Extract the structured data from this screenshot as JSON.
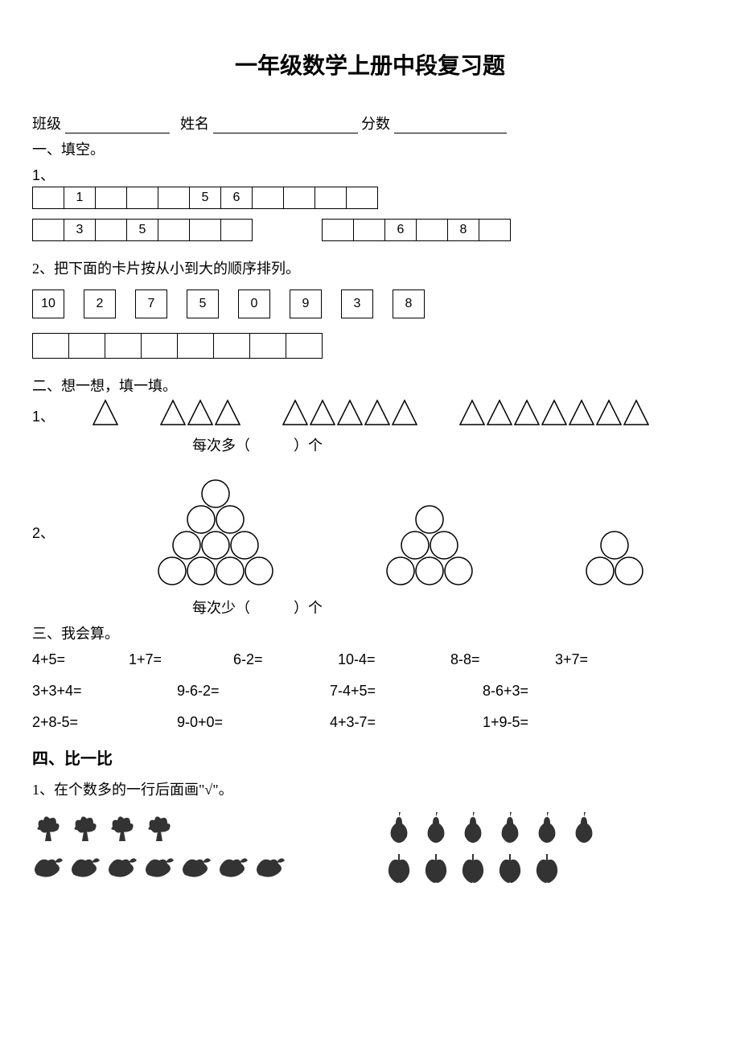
{
  "title": "一年级数学上册中段复习题",
  "header": {
    "class_label": "班级",
    "name_label": "姓名",
    "score_label": "分数"
  },
  "s1": {
    "heading": "一、填空。",
    "q1_label": "1、",
    "row1": [
      "",
      "1",
      "",
      "",
      "",
      "5",
      "6",
      "",
      "",
      "",
      ""
    ],
    "row2a": [
      "",
      "3",
      "",
      "5",
      "",
      "",
      ""
    ],
    "row2b": [
      "",
      "",
      "6",
      "",
      "8",
      ""
    ],
    "q2": "2、把下面的卡片按从小到大的顺序排列。",
    "cards": [
      "10",
      "2",
      "7",
      "5",
      "0",
      "9",
      "3",
      "8"
    ],
    "empty_count": 8
  },
  "s2": {
    "heading": "二、想一想，填一填。",
    "q1_label": "1、",
    "tri_groups": [
      1,
      3,
      5,
      7
    ],
    "tri_caption": "每次多（　　　）个",
    "q2_label": "2、",
    "circle_pyramids": [
      4,
      3,
      2
    ],
    "circle_caption": "每次少（　　　）个",
    "tri_size": 34,
    "circle_r": 18,
    "stroke": "#000000",
    "stroke_width": 1.5
  },
  "s3": {
    "heading": "三、我会算。",
    "line1": [
      "4+5=",
      "1+7=",
      "6-2=",
      "10-4=",
      "8-8=",
      "3+7="
    ],
    "line1_widths": [
      120,
      130,
      130,
      140,
      130,
      80
    ],
    "line2": [
      "3+3+4=",
      "9-6-2=",
      "7-4+5=",
      "8-6+3="
    ],
    "line2_widths": [
      180,
      190,
      190,
      120
    ],
    "line3": [
      "2+8-5=",
      "9-0+0=",
      "4+3-7=",
      "1+9-5="
    ],
    "line3_widths": [
      180,
      190,
      190,
      120
    ]
  },
  "s4": {
    "heading": "四、比一比",
    "q1": "1、在个数多的一行后面画\"√\"。",
    "left_top_count": 4,
    "left_bottom_count": 7,
    "right_top_count": 6,
    "right_bottom_count": 5,
    "icon_size": 40,
    "icon_fill": "#333333"
  },
  "blank_widths": {
    "class": 130,
    "name": 180,
    "score": 140
  }
}
